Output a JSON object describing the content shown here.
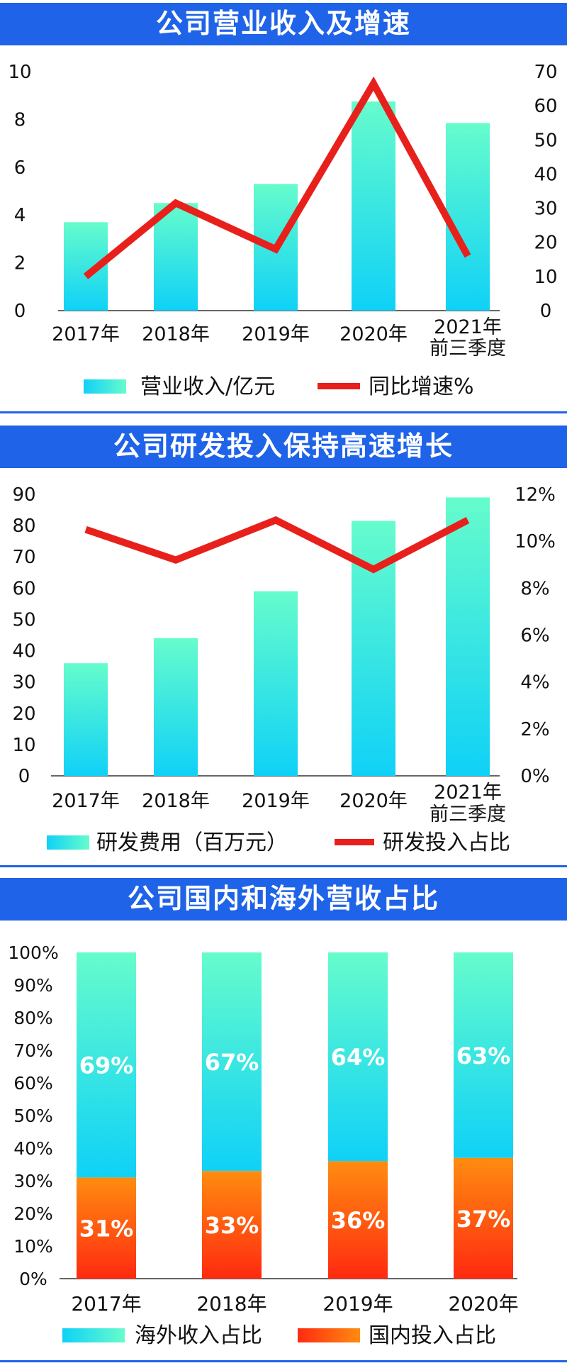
{
  "colors": {
    "header_bg": "#1f63e8",
    "header_text": "#ffffff",
    "bar_top": "#66fccc",
    "bar_bottom": "#0fd1f7",
    "line": "#e8201b",
    "domestic_top": "#ff8c10",
    "domestic_bottom": "#ff2a10",
    "divider": "#1f63e8",
    "axis": "#333333",
    "text": "#111111"
  },
  "chart_data": [
    {
      "type": "bar",
      "title": "公司营业收入及增速",
      "categories": [
        "2017年",
        "2018年",
        "2019年",
        "2020年",
        "2021年\n前三季度"
      ],
      "series": [
        {
          "name": "营业收入/亿元",
          "type": "bar",
          "axis": "left",
          "values": [
            3.7,
            4.5,
            5.3,
            8.75,
            7.85
          ]
        },
        {
          "name": "同比增速%",
          "type": "line",
          "axis": "right",
          "values": [
            10,
            31.5,
            18,
            66.5,
            16
          ]
        }
      ],
      "ylim_left": [
        0,
        10
      ],
      "ylim_right": [
        0,
        70
      ],
      "yticks_left": [
        "0",
        "2",
        "4",
        "6",
        "8",
        "10"
      ],
      "yticks_right": [
        "0",
        "10",
        "20",
        "30",
        "40",
        "50",
        "60",
        "70"
      ],
      "legend": [
        "营业收入/亿元",
        "同比增速%"
      ],
      "legend_position": "bottom"
    },
    {
      "type": "bar",
      "title": "公司研发投入保持高速增长",
      "categories": [
        "2017年",
        "2018年",
        "2019年",
        "2020年",
        "2021年\n前三季度"
      ],
      "series": [
        {
          "name": "研发费用（百万元）",
          "type": "bar",
          "axis": "left",
          "values": [
            36,
            44,
            59,
            81.5,
            89
          ]
        },
        {
          "name": "研发投入占比",
          "type": "line",
          "axis": "right",
          "values": [
            10.5,
            9.2,
            10.9,
            8.8,
            10.9
          ]
        }
      ],
      "ylim_left": [
        0,
        90
      ],
      "ylim_right": [
        0,
        12
      ],
      "yticks_left": [
        "0",
        "10",
        "20",
        "30",
        "40",
        "50",
        "60",
        "70",
        "80",
        "90"
      ],
      "yticks_right": [
        "0%",
        "2%",
        "4%",
        "6%",
        "8%",
        "10%",
        "12%"
      ],
      "legend": [
        "研发费用（百万元）",
        "研发投入占比"
      ],
      "legend_position": "bottom"
    },
    {
      "type": "bar",
      "stacked": true,
      "title": "公司国内和海外营收占比",
      "categories": [
        "2017年",
        "2018年",
        "2019年",
        "2020年"
      ],
      "series": [
        {
          "name": "国内投入占比",
          "values": [
            31,
            33,
            36,
            37
          ],
          "labels": [
            "31%",
            "33%",
            "36%",
            "37%"
          ]
        },
        {
          "name": "海外收入占比",
          "values": [
            69,
            67,
            64,
            63
          ],
          "labels": [
            "69%",
            "67%",
            "64%",
            "63%"
          ]
        }
      ],
      "ylim": [
        0,
        100
      ],
      "yticks": [
        "0%",
        "10%",
        "20%",
        "30%",
        "40%",
        "50%",
        "60%",
        "70%",
        "80%",
        "90%",
        "100%"
      ],
      "legend": [
        "海外收入占比",
        "国内投入占比"
      ],
      "legend_position": "bottom"
    }
  ]
}
